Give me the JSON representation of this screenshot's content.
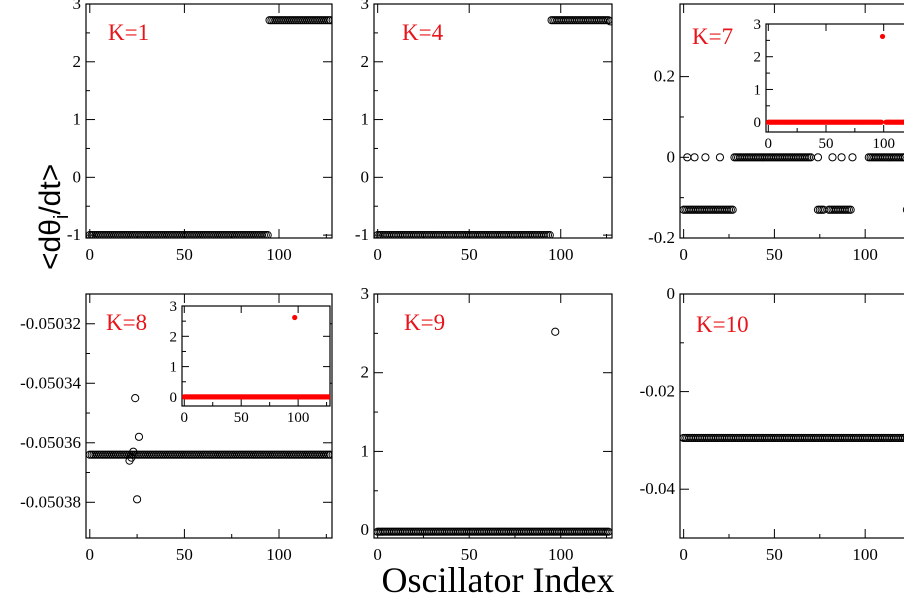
{
  "figure": {
    "xlabel": "Oscillator Index",
    "ylabel": "<dθi/dt>",
    "ylabel_main": "<dθ",
    "ylabel_sub": "i",
    "ylabel_tail": "/dt>"
  },
  "colors": {
    "main_marker": "#000000",
    "inset_marker": "#ff0000",
    "panel_label": "#e8141a"
  },
  "chart_data": [
    {
      "type": "scatter",
      "label": "K=1",
      "xlim": [
        -2,
        128
      ],
      "ylim": [
        -1.05,
        3.0
      ],
      "xticks": [
        0,
        50,
        100
      ],
      "xticklabels": [
        "0",
        "50",
        "100"
      ],
      "yticks": [
        -1,
        0,
        1,
        2,
        3
      ],
      "yticklabels": [
        "-1",
        "0",
        "1",
        "2",
        "3"
      ],
      "segments": [
        {
          "x_from": 0,
          "x_to": 94,
          "y": -1.0
        },
        {
          "x_from": 95,
          "x_to": 127,
          "y": 2.72
        }
      ],
      "points": []
    },
    {
      "type": "scatter",
      "label": "K=4",
      "xlim": [
        -2,
        128
      ],
      "ylim": [
        -1.05,
        3.0
      ],
      "xticks": [
        0,
        50,
        100
      ],
      "xticklabels": [
        "0",
        "50",
        "100"
      ],
      "yticks": [
        -1,
        0,
        1,
        2,
        3
      ],
      "yticklabels": [
        "-1",
        "0",
        "1",
        "2",
        "3"
      ],
      "segments": [
        {
          "x_from": 0,
          "x_to": 94,
          "y": -1.0
        },
        {
          "x_from": 95,
          "x_to": 126,
          "y": 2.72
        }
      ],
      "points": [
        {
          "x": 127,
          "y": 2.7
        }
      ]
    },
    {
      "type": "scatter",
      "label": "K=7",
      "xlim": [
        -2,
        128
      ],
      "ylim": [
        -0.2,
        0.38
      ],
      "xticks": [
        0,
        50,
        100
      ],
      "xticklabels": [
        "0",
        "50",
        "100"
      ],
      "yticks": [
        -0.2,
        0,
        0.2
      ],
      "yticklabels": [
        "-0.2",
        "0",
        "0.2"
      ],
      "segments": [
        {
          "x_from": 0,
          "x_to": 27,
          "y": -0.13
        },
        {
          "x_from": 28,
          "x_to": 70,
          "y": 0.0
        },
        {
          "x_from": 74,
          "x_to": 77,
          "y": -0.13
        },
        {
          "x_from": 80,
          "x_to": 92,
          "y": -0.13
        },
        {
          "x_from": 102,
          "x_to": 122,
          "y": 0.0
        },
        {
          "x_from": 123,
          "x_to": 127,
          "y": -0.13
        }
      ],
      "points": [
        {
          "x": 2,
          "y": 0.0
        },
        {
          "x": 6,
          "y": 0.0
        },
        {
          "x": 12,
          "y": 0.0
        },
        {
          "x": 20,
          "y": 0.0
        },
        {
          "x": 74,
          "y": 0.0
        },
        {
          "x": 82,
          "y": 0.0
        },
        {
          "x": 87,
          "y": 0.0
        },
        {
          "x": 93,
          "y": 0.0
        }
      ],
      "inset": {
        "xlim": [
          -2,
          128
        ],
        "ylim": [
          -0.3,
          3.0
        ],
        "xticks": [
          0,
          50,
          100
        ],
        "xticklabels": [
          "0",
          "50",
          "100"
        ],
        "yticks": [
          0,
          1,
          2,
          3
        ],
        "yticklabels": [
          "0",
          "1",
          "2",
          "3"
        ],
        "segments": [
          {
            "x_from": 0,
            "x_to": 98,
            "y": 0.0
          },
          {
            "x_from": 102,
            "x_to": 127,
            "y": 0.0
          }
        ],
        "points": [
          {
            "x": 99,
            "y": 2.62
          }
        ]
      }
    },
    {
      "type": "scatter",
      "label": "K=8",
      "xlim": [
        -2,
        128
      ],
      "ylim": [
        -0.050392,
        -0.05031
      ],
      "xticks": [
        0,
        50,
        100
      ],
      "xticklabels": [
        "0",
        "50",
        "100"
      ],
      "yticks": [
        -0.05032,
        -0.05034,
        -0.05036,
        -0.05038
      ],
      "yticklabels": [
        "-0.05032",
        "-0.05034",
        "-0.05036",
        "-0.05038"
      ],
      "segments": [
        {
          "x_from": 0,
          "x_to": 127,
          "y": -0.050364
        }
      ],
      "points": [
        {
          "x": 21,
          "y": -0.050366
        },
        {
          "x": 22,
          "y": -0.050365
        },
        {
          "x": 23,
          "y": -0.050363
        },
        {
          "x": 24,
          "y": -0.050345
        },
        {
          "x": 25,
          "y": -0.050379
        },
        {
          "x": 26,
          "y": -0.050358
        }
      ],
      "inset": {
        "xlim": [
          -2,
          128
        ],
        "ylim": [
          -0.3,
          3.0
        ],
        "xticks": [
          0,
          50,
          100
        ],
        "xticklabels": [
          "0",
          "50",
          "100"
        ],
        "yticks": [
          0,
          1,
          2,
          3
        ],
        "yticklabels": [
          "0",
          "1",
          "2",
          "3"
        ],
        "segments": [
          {
            "x_from": 0,
            "x_to": 127,
            "y": 0.0
          }
        ],
        "points": [
          {
            "x": 97,
            "y": 2.62
          }
        ]
      }
    },
    {
      "type": "scatter",
      "label": "K=9",
      "xlim": [
        -2,
        128
      ],
      "ylim": [
        -0.1,
        3.0
      ],
      "xticks": [
        0,
        50,
        100
      ],
      "xticklabels": [
        "0",
        "50",
        "100"
      ],
      "yticks": [
        0,
        1,
        2,
        3
      ],
      "yticklabels": [
        "0",
        "1",
        "2",
        "3"
      ],
      "segments": [
        {
          "x_from": 0,
          "x_to": 126,
          "y": -0.02
        }
      ],
      "points": [
        {
          "x": 97,
          "y": 2.52
        }
      ]
    },
    {
      "type": "scatter",
      "label": "K=10",
      "xlim": [
        -2,
        128
      ],
      "ylim": [
        -0.05,
        0.0
      ],
      "xticks": [
        0,
        50,
        100
      ],
      "xticklabels": [
        "0",
        "50",
        "100"
      ],
      "yticks": [
        0,
        -0.02,
        -0.04
      ],
      "yticklabels": [
        "0",
        "-0.02",
        "-0.04"
      ],
      "segments": [
        {
          "x_from": 0,
          "x_to": 127,
          "y": -0.0295
        }
      ],
      "points": []
    }
  ]
}
